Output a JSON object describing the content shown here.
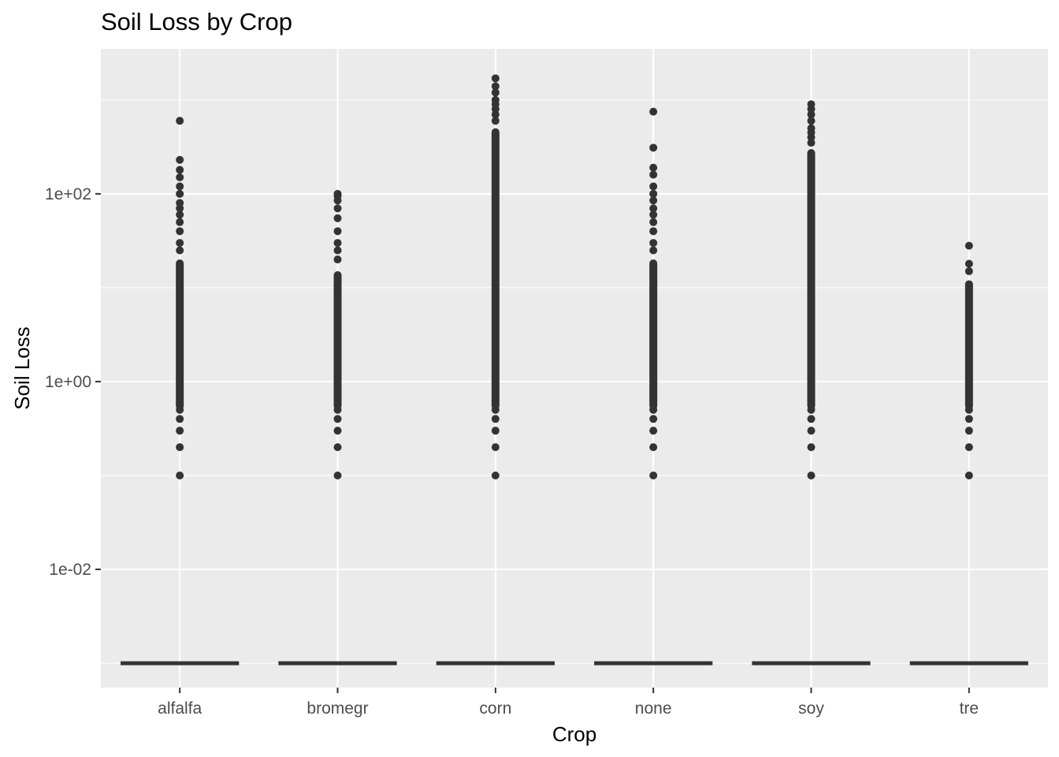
{
  "chart_data": {
    "type": "boxplot",
    "title": "Soil Loss by Crop",
    "xlabel": "Crop",
    "ylabel": "Soil Loss",
    "y_scale": "log10",
    "ylim": [
      0.00055,
      3.5
    ],
    "y_ticks": [
      {
        "value": 0.01,
        "label": "1e-02"
      },
      {
        "value": 1,
        "label": "1e+00"
      },
      {
        "value": 100,
        "label": "1e+02"
      }
    ],
    "categories": [
      "alfalfa",
      "bromegr",
      "corn",
      "none",
      "soy",
      "tre"
    ],
    "box_value": 0.001,
    "outliers": [
      {
        "crop": "alfalfa",
        "min": 0.1,
        "max": 20,
        "top_points": [
          25,
          30,
          40,
          50,
          60,
          70,
          80,
          100,
          120,
          150,
          180,
          230,
          600
        ]
      },
      {
        "crop": "bromegr",
        "min": 0.1,
        "max": 15,
        "top_points": [
          20,
          25,
          30,
          40,
          55,
          70,
          85,
          95,
          100
        ]
      },
      {
        "crop": "corn",
        "min": 0.1,
        "max": 500,
        "top_points": [
          600,
          700,
          800,
          900,
          1000,
          1200,
          1400,
          1700
        ]
      },
      {
        "crop": "none",
        "min": 0.1,
        "max": 20,
        "top_points": [
          25,
          30,
          40,
          50,
          60,
          70,
          85,
          100,
          120,
          160,
          190,
          310,
          750
        ]
      },
      {
        "crop": "soy",
        "min": 0.1,
        "max": 300,
        "top_points": [
          350,
          400,
          450,
          500,
          600,
          700,
          800,
          900
        ]
      },
      {
        "crop": "tre",
        "min": 0.1,
        "max": 12,
        "top_points": [
          15,
          18,
          28
        ]
      }
    ],
    "background": "#ebebeb",
    "gridline_color": "#ffffff",
    "mark_color": "#333333",
    "grid": true,
    "legend": "none"
  }
}
